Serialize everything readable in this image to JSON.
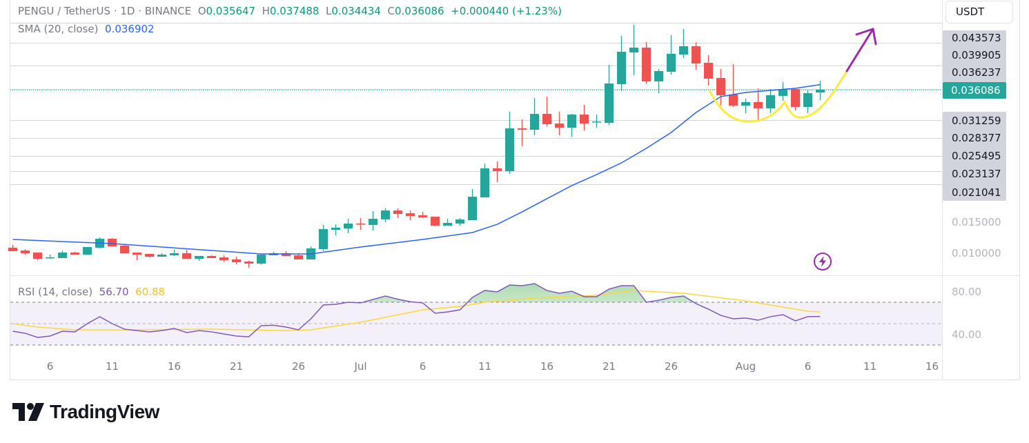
{
  "header": {
    "symbol": "PENGU / TetherUS · 1D · BINANCE",
    "open_label": "O",
    "open": "0.035647",
    "high_label": "H",
    "high": "0.037488",
    "low_label": "L",
    "low": "0.034434",
    "close_label": "C",
    "close": "0.036086",
    "change": "+0.000440 (+1.23%)",
    "sma_label": "SMA (20, close)",
    "sma_value": "0.036902",
    "rsi_label": "RSI (14, close)",
    "rsi_value": "56.70",
    "rsi_ma_value": "60.88"
  },
  "currency_button": "USDT",
  "price_axis": {
    "fib_labels": [
      "0.043573",
      "0.039905",
      "0.036237",
      "0.031259",
      "0.028377",
      "0.025495",
      "0.023137",
      "0.021041"
    ],
    "current_price": "0.036086",
    "ticks": [
      "0.015000",
      "0.010000"
    ],
    "rsi_ticks": [
      "80.00",
      "40.00"
    ]
  },
  "brand": "TradingView",
  "icons": {
    "alert": "lightning-icon",
    "logo": "tradingview-logo"
  },
  "colors": {
    "up": "#26a69a",
    "down": "#ef5350",
    "sma": "#2962ff",
    "rsi": "#7e57c2",
    "rsi_ma": "#fdd835",
    "drawing_curve": "#ffeb3b",
    "drawing_arrow": "#9c27b0"
  },
  "chart_data": {
    "type": "candlestick",
    "title": "PENGU / TetherUS · 1D · BINANCE",
    "y_scale": "linear",
    "candle_fields": [
      "date",
      "open",
      "high",
      "low",
      "close"
    ],
    "candles": [
      [
        "Jun 3",
        0.01088,
        0.01132,
        0.01033,
        0.01033
      ],
      [
        "Jun 4",
        0.01044,
        0.01066,
        0.00978,
        0.01
      ],
      [
        "Jun 5",
        0.01011,
        0.01011,
        0.0089,
        0.00912
      ],
      [
        "Jun 6",
        0.00923,
        0.00978,
        0.00912,
        0.00934
      ],
      [
        "Jun 7",
        0.00923,
        0.01044,
        0.00923,
        0.01011
      ],
      [
        "Jun 8",
        0.01011,
        0.01022,
        0.00978,
        0.00978
      ],
      [
        "Jun 9",
        0.00978,
        0.01099,
        0.00978,
        0.01099
      ],
      [
        "Jun 10",
        0.01088,
        0.01253,
        0.01077,
        0.01231
      ],
      [
        "Jun 11",
        0.01231,
        0.01242,
        0.0111,
        0.0111
      ],
      [
        "Jun 12",
        0.01121,
        0.01132,
        0.01,
        0.01
      ],
      [
        "Jun 13",
        0.01011,
        0.01011,
        0.0089,
        0.00978
      ],
      [
        "Jun 14",
        0.00989,
        0.00989,
        0.00934,
        0.00945
      ],
      [
        "Jun 15",
        0.00945,
        0.01,
        0.00945,
        0.00978
      ],
      [
        "Jun 16",
        0.00967,
        0.01055,
        0.00956,
        0.01
      ],
      [
        "Jun 17",
        0.01,
        0.01055,
        0.00912,
        0.00912
      ],
      [
        "Jun 18",
        0.00912,
        0.00956,
        0.00879,
        0.00956
      ],
      [
        "Jun 19",
        0.00956,
        0.00967,
        0.00923,
        0.00923
      ],
      [
        "Jun 20",
        0.00934,
        0.00967,
        0.00868,
        0.0089
      ],
      [
        "Jun 21",
        0.00901,
        0.00945,
        0.00824,
        0.00857
      ],
      [
        "Jun 22",
        0.00868,
        0.00879,
        0.00769,
        0.00835
      ],
      [
        "Jun 23",
        0.00835,
        0.00978,
        0.00824,
        0.00978
      ],
      [
        "Jun 24",
        0.00967,
        0.01022,
        0.00967,
        0.01
      ],
      [
        "Jun 25",
        0.01,
        0.01033,
        0.00956,
        0.00956
      ],
      [
        "Jun 26",
        0.00967,
        0.01,
        0.00901,
        0.00901
      ],
      [
        "Jun 27",
        0.00901,
        0.0111,
        0.00901,
        0.01077
      ],
      [
        "Jun 28",
        0.01066,
        0.01451,
        0.01033,
        0.01385
      ],
      [
        "Jun 29",
        0.01374,
        0.01462,
        0.01286,
        0.01407
      ],
      [
        "Jun 30",
        0.01396,
        0.0155,
        0.01319,
        0.01473
      ],
      [
        "Jul 1",
        0.01473,
        0.01561,
        0.01374,
        0.01468
      ],
      [
        "Jul 2",
        0.01451,
        0.01671,
        0.01363,
        0.0155
      ],
      [
        "Jul 3",
        0.01539,
        0.01715,
        0.01495,
        0.01682
      ],
      [
        "Jul 4",
        0.01682,
        0.01715,
        0.01561,
        0.01627
      ],
      [
        "Jul 5",
        0.01638,
        0.01682,
        0.01528,
        0.01594
      ],
      [
        "Jul 6",
        0.01605,
        0.0166,
        0.01561,
        0.01572
      ],
      [
        "Jul 7",
        0.01583,
        0.01583,
        0.01429,
        0.0144
      ],
      [
        "Jul 8",
        0.0144,
        0.0155,
        0.0144,
        0.01484
      ],
      [
        "Jul 9",
        0.01473,
        0.01561,
        0.0144,
        0.01539
      ],
      [
        "Jul 10",
        0.01528,
        0.02024,
        0.01528,
        0.01902
      ],
      [
        "Jul 11",
        0.01891,
        0.02431,
        0.01891,
        0.02354
      ],
      [
        "Jul 12",
        0.02354,
        0.02464,
        0.02134,
        0.0231
      ],
      [
        "Jul 13",
        0.0231,
        0.03256,
        0.02266,
        0.02992
      ],
      [
        "Jul 14",
        0.02992,
        0.03135,
        0.02706,
        0.0297
      ],
      [
        "Jul 15",
        0.0297,
        0.03476,
        0.02882,
        0.03223
      ],
      [
        "Jul 16",
        0.03223,
        0.03498,
        0.03025,
        0.03058
      ],
      [
        "Jul 17",
        0.03069,
        0.03256,
        0.02882,
        0.03003
      ],
      [
        "Jul 18",
        0.03003,
        0.03223,
        0.0286,
        0.03212
      ],
      [
        "Jul 19",
        0.03212,
        0.03367,
        0.02959,
        0.03069
      ],
      [
        "Jul 20",
        0.03091,
        0.03212,
        0.03003,
        0.03102
      ],
      [
        "Jul 21",
        0.0308,
        0.04005,
        0.03047,
        0.03708
      ],
      [
        "Jul 22",
        0.03697,
        0.04467,
        0.03587,
        0.04214
      ],
      [
        "Jul 23",
        0.04203,
        0.04643,
        0.0384,
        0.0428
      ],
      [
        "Jul 24",
        0.0428,
        0.04368,
        0.03708,
        0.03741
      ],
      [
        "Jul 25",
        0.03741,
        0.03939,
        0.03554,
        0.03906
      ],
      [
        "Jul 26",
        0.03895,
        0.04478,
        0.03851,
        0.04181
      ],
      [
        "Jul 27",
        0.0417,
        0.04577,
        0.04115,
        0.04302
      ],
      [
        "Jul 28",
        0.04302,
        0.04368,
        0.03928,
        0.04027
      ],
      [
        "Jul 29",
        0.04038,
        0.04159,
        0.03675,
        0.03785
      ],
      [
        "Jul 30",
        0.03796,
        0.03939,
        0.03356,
        0.03521
      ],
      [
        "Jul 31",
        0.03532,
        0.04016,
        0.03334,
        0.03356
      ],
      [
        "Aug 1",
        0.03356,
        0.03466,
        0.03235,
        0.03411
      ],
      [
        "Aug 2",
        0.03411,
        0.0363,
        0.03113,
        0.03312
      ],
      [
        "Aug 3",
        0.03312,
        0.03619,
        0.03235,
        0.03521
      ],
      [
        "Aug 4",
        0.0351,
        0.0373,
        0.03433,
        0.03619
      ],
      [
        "Aug 5",
        0.03619,
        0.03619,
        0.03279,
        0.03334
      ],
      [
        "Aug 6",
        0.03334,
        0.03609,
        0.03235,
        0.03554
      ],
      [
        "Aug 7",
        0.035647,
        0.037488,
        0.034434,
        0.036086
      ]
    ],
    "sma20": [
      [
        "Jun 3",
        0.0122
      ],
      [
        "Jun 11",
        0.01154
      ],
      [
        "Jun 19",
        0.01044
      ],
      [
        "Jun 23",
        0.00989
      ],
      [
        "Jun 27",
        0.00989
      ],
      [
        "Jul 1",
        0.01099
      ],
      [
        "Jul 6",
        0.0122
      ],
      [
        "Jul 10",
        0.0133
      ],
      [
        "Jul 12",
        0.01462
      ],
      [
        "Jul 14",
        0.0166
      ],
      [
        "Jul 16",
        0.0187
      ],
      [
        "Jul 18",
        0.02079
      ],
      [
        "Jul 20",
        0.02255
      ],
      [
        "Jul 22",
        0.02442
      ],
      [
        "Jul 24",
        0.02673
      ],
      [
        "Jul 26",
        0.02926
      ],
      [
        "Jul 28",
        0.03245
      ],
      [
        "Jul 30",
        0.03499
      ],
      [
        "Aug 1",
        0.03565
      ],
      [
        "Aug 3",
        0.03598
      ],
      [
        "Aug 5",
        0.03631
      ],
      [
        "Aug 7",
        0.036902
      ]
    ],
    "fib_levels": [
      0.043573,
      0.039905,
      0.036237,
      0.031259,
      0.028377,
      0.025495,
      0.023137,
      0.021041
    ],
    "current_price": 0.036086,
    "rsi": {
      "period": 14,
      "upper": 70,
      "middle": 50,
      "lower": 30,
      "values": [
        42.9,
        41,
        37.1,
        38.4,
        42.9,
        42.3,
        50,
        56.5,
        50,
        44.8,
        43.5,
        42.3,
        43.5,
        45.5,
        41.6,
        43.5,
        42.3,
        40.3,
        38.4,
        37.7,
        48.1,
        48.5,
        46.8,
        44.2,
        54.5,
        67.4,
        68.1,
        70,
        69.4,
        72.6,
        75.8,
        72.8,
        70.5,
        69.4,
        59.7,
        61,
        62.9,
        74.5,
        81,
        79.7,
        86.1,
        85.5,
        87.4,
        81,
        78.4,
        80.3,
        75.2,
        75.2,
        82.3,
        85.5,
        85.5,
        70,
        71.9,
        74.5,
        75.8,
        68.7,
        63.5,
        57.7,
        54.5,
        55.2,
        53.2,
        56.5,
        58.4,
        52.6,
        56.5,
        56.7
      ],
      "ma": [
        [
          "Jun 3",
          50
        ],
        [
          "Jun 5",
          46.8
        ],
        [
          "Jun 8",
          44.2
        ],
        [
          "Jun 12",
          44.2
        ],
        [
          "Jun 19",
          44.8
        ],
        [
          "Jun 25",
          43.5
        ],
        [
          "Jun 27",
          44.2
        ],
        [
          "Jul 1",
          51.3
        ],
        [
          "Jul 6",
          62.9
        ],
        [
          "Jul 9",
          66.1
        ],
        [
          "Jul 11",
          70
        ],
        [
          "Jul 15",
          73.9
        ],
        [
          "Jul 20",
          76.5
        ],
        [
          "Jul 23",
          81
        ],
        [
          "Jul 27",
          78.4
        ],
        [
          "Aug 1",
          71.3
        ],
        [
          "Aug 6",
          61.6
        ],
        [
          "Aug 7",
          60.88
        ]
      ]
    },
    "x_ticks": [
      {
        "label": "6",
        "date": "Jun 6"
      },
      {
        "label": "11",
        "date": "Jun 11"
      },
      {
        "label": "16",
        "date": "Jun 16"
      },
      {
        "label": "21",
        "date": "Jun 21"
      },
      {
        "label": "26",
        "date": "Jun 26"
      },
      {
        "label": "Jul",
        "date": "Jul 1"
      },
      {
        "label": "6",
        "date": "Jul 6"
      },
      {
        "label": "11",
        "date": "Jul 11"
      },
      {
        "label": "16",
        "date": "Jul 16"
      },
      {
        "label": "21",
        "date": "Jul 21"
      },
      {
        "label": "26",
        "date": "Jul 26"
      },
      {
        "label": "Aug",
        "date": "Aug 1"
      },
      {
        "label": "6",
        "date": "Aug 6"
      },
      {
        "label": "11",
        "date": "Aug 11"
      },
      {
        "label": "16",
        "date": "Aug 16"
      }
    ],
    "grid": false,
    "legend": "top-left"
  }
}
